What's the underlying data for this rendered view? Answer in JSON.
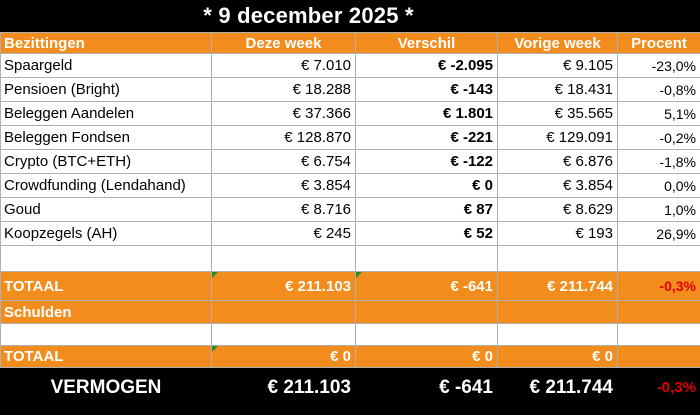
{
  "title": "* 9 december 2025 *",
  "headers": [
    "Bezittingen",
    "Deze week",
    "Verschil",
    "Vorige week",
    "Procent"
  ],
  "rows": [
    {
      "label": "Spaargeld",
      "this_week": "€ 7.010",
      "diff": "€ -2.095",
      "last_week": "€ 9.105",
      "pct": "-23,0%",
      "trend": "neg"
    },
    {
      "label": "Pensioen (Bright)",
      "this_week": "€ 18.288",
      "diff": "€ -143",
      "last_week": "€ 18.431",
      "pct": "-0,8%",
      "trend": "neg"
    },
    {
      "label": "Beleggen Aandelen",
      "this_week": "€ 37.366",
      "diff": "€ 1.801",
      "last_week": "€ 35.565",
      "pct": "5,1%",
      "trend": "pos"
    },
    {
      "label": "Beleggen Fondsen",
      "this_week": "€ 128.870",
      "diff": "€ -221",
      "last_week": "€ 129.091",
      "pct": "-0,2%",
      "trend": "neg"
    },
    {
      "label": "Crypto (BTC+ETH)",
      "this_week": "€ 6.754",
      "diff": "€ -122",
      "last_week": "€ 6.876",
      "pct": "-1,8%",
      "trend": "neg"
    },
    {
      "label": "Crowdfunding (Lendahand)",
      "this_week": "€ 3.854",
      "diff": "€ 0",
      "last_week": "€ 3.854",
      "pct": "0,0%",
      "trend": "pos"
    },
    {
      "label": "Goud",
      "this_week": "€ 8.716",
      "diff": "€ 87",
      "last_week": "€ 8.629",
      "pct": "1,0%",
      "trend": "pos"
    },
    {
      "label": "Koopzegels (AH)",
      "this_week": "€ 245",
      "diff": "€ 52",
      "last_week": "€ 193",
      "pct": "26,9%",
      "trend": "pos"
    }
  ],
  "total": {
    "label": "TOTAAL",
    "this_week": "€ 211.103",
    "diff": "€ -641",
    "last_week": "€ 211.744",
    "pct": "-0,3%"
  },
  "debts": {
    "label": "Schulden"
  },
  "debts_total": {
    "label": "TOTAAL",
    "this_week": "€ 0",
    "diff": "€ 0",
    "last_week": "€ 0"
  },
  "net_worth": {
    "label": "VERMOGEN",
    "this_week": "€ 211.103",
    "diff": "€ -641",
    "last_week": "€ 211.744",
    "pct": "-0,3%"
  },
  "colors": {
    "header_orange": "#F28C1C",
    "negative": "#e02020",
    "positive": "#22a02e"
  }
}
